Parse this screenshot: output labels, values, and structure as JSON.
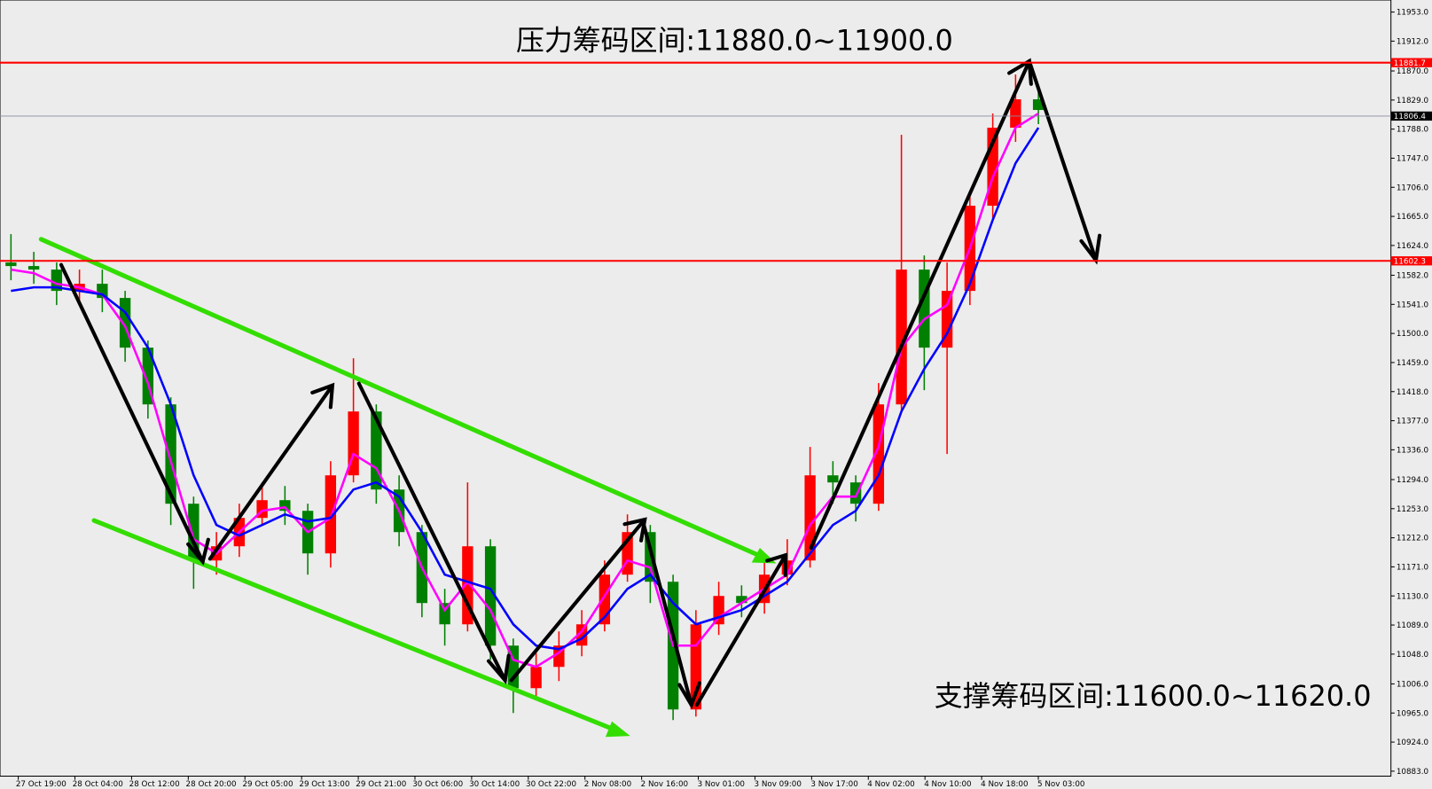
{
  "chart_data": {
    "type": "candlestick",
    "annotations": [
      "压力筹码区间:11880.0~11900.0",
      "支撑筹码区间:11600.0~11620.0"
    ],
    "up_color": "#ff0000",
    "down_color": "#008000",
    "ylim": [
      10876,
      11970
    ],
    "yticks": [
      {
        "value": 11953,
        "label": "11953.0"
      },
      {
        "value": 11912,
        "label": "11912.0"
      },
      {
        "value": 11870,
        "label": "11870.0"
      },
      {
        "value": 11829,
        "label": "11829.0"
      },
      {
        "value": 11788,
        "label": "11788.0"
      },
      {
        "value": 11747,
        "label": "11747.0"
      },
      {
        "value": 11706,
        "label": "11706.0"
      },
      {
        "value": 11665,
        "label": "11665.0"
      },
      {
        "value": 11624,
        "label": "11624.0"
      },
      {
        "value": 11582,
        "label": "11582.0"
      },
      {
        "value": 11541,
        "label": "11541.0"
      },
      {
        "value": 11500,
        "label": "11500.0"
      },
      {
        "value": 11459,
        "label": "11459.0"
      },
      {
        "value": 11418,
        "label": "11418.0"
      },
      {
        "value": 11377,
        "label": "11377.0"
      },
      {
        "value": 11336,
        "label": "11336.0"
      },
      {
        "value": 11294,
        "label": "11294.0"
      },
      {
        "value": 11253,
        "label": "11253.0"
      },
      {
        "value": 11212,
        "label": "11212.0"
      },
      {
        "value": 11171,
        "label": "11171.0"
      },
      {
        "value": 11130,
        "label": "11130.0"
      },
      {
        "value": 11089,
        "label": "11089.0"
      },
      {
        "value": 11048,
        "label": "11048.0"
      },
      {
        "value": 11006,
        "label": "11006.0"
      },
      {
        "value": 10965,
        "label": "10965.0"
      },
      {
        "value": 10924,
        "label": "10924.0"
      },
      {
        "value": 10883,
        "label": "10883.0"
      }
    ],
    "x_labels": [
      "27 Oct 19:00",
      "28 Oct 04:00",
      "28 Oct 12:00",
      "28 Oct 20:00",
      "29 Oct 05:00",
      "29 Oct 13:00",
      "29 Oct 21:00",
      "30 Oct 06:00",
      "30 Oct 14:00",
      "30 Oct 22:00",
      "2 Nov 08:00",
      "2 Nov 16:00",
      "3 Nov 01:00",
      "3 Nov 09:00",
      "3 Nov 17:00",
      "4 Nov 02:00",
      "4 Nov 10:00",
      "4 Nov 18:00",
      "5 Nov 03:00"
    ],
    "open": [
      11600,
      11595,
      11590,
      11560,
      11570,
      11550,
      11480,
      11400,
      11260,
      11180,
      11200,
      11240,
      11265,
      11250,
      11190,
      11300,
      11390,
      11280,
      11220,
      11120,
      11090,
      11200,
      11060,
      11000,
      11030,
      11060,
      11090,
      11160,
      11220,
      11150,
      10970,
      11090,
      11130,
      11120,
      11160,
      11180,
      11300,
      11290,
      11260,
      11400,
      11590,
      11480,
      11560,
      11680,
      11790,
      11830
    ],
    "high": [
      11640,
      11615,
      11600,
      11590,
      11590,
      11560,
      11490,
      11410,
      11270,
      11220,
      11260,
      11290,
      11285,
      11260,
      11320,
      11465,
      11400,
      11300,
      11230,
      11140,
      11290,
      11210,
      11070,
      11050,
      11080,
      11110,
      11180,
      11245,
      11230,
      11160,
      11110,
      11150,
      11145,
      11180,
      11210,
      11340,
      11320,
      11300,
      11430,
      11780,
      11610,
      11600,
      11700,
      11810,
      11865,
      11850
    ],
    "low": [
      11575,
      11570,
      11540,
      11545,
      11530,
      11460,
      11380,
      11230,
      11140,
      11160,
      11185,
      11230,
      11230,
      11160,
      11170,
      11290,
      11260,
      11200,
      11100,
      11060,
      11080,
      11040,
      10965,
      10985,
      11010,
      11045,
      11080,
      11150,
      11120,
      10955,
      10960,
      11075,
      11100,
      11105,
      11145,
      11170,
      11260,
      11235,
      11250,
      11390,
      11420,
      11330,
      11540,
      11660,
      11770,
      11795
    ],
    "close": [
      11595,
      11590,
      11560,
      11570,
      11550,
      11480,
      11400,
      11260,
      11180,
      11200,
      11240,
      11265,
      11250,
      11190,
      11300,
      11390,
      11280,
      11220,
      11120,
      11090,
      11200,
      11060,
      11000,
      11030,
      11060,
      11090,
      11160,
      11220,
      11150,
      10970,
      11090,
      11130,
      11120,
      11160,
      11180,
      11300,
      11290,
      11260,
      11400,
      11590,
      11480,
      11560,
      11680,
      11790,
      11830,
      11815
    ],
    "series": [
      {
        "color": "#ff00ff",
        "values": [
          11590,
          11585,
          11570,
          11565,
          11555,
          11510,
          11430,
          11320,
          11210,
          11190,
          11220,
          11250,
          11255,
          11220,
          11240,
          11330,
          11310,
          11250,
          11170,
          11110,
          11150,
          11110,
          11040,
          11030,
          11050,
          11080,
          11130,
          11180,
          11170,
          11060,
          11060,
          11100,
          11120,
          11140,
          11160,
          11230,
          11270,
          11270,
          11340,
          11480,
          11520,
          11540,
          11620,
          11720,
          11790,
          11810
        ]
      },
      {
        "color": "#0000ff",
        "values": [
          11560,
          11565,
          11565,
          11560,
          11555,
          11530,
          11480,
          11400,
          11300,
          11230,
          11215,
          11230,
          11245,
          11235,
          11240,
          11280,
          11290,
          11270,
          11220,
          11160,
          11150,
          11140,
          11090,
          11060,
          11055,
          11070,
          11100,
          11140,
          11160,
          11120,
          11090,
          11100,
          11110,
          11130,
          11150,
          11190,
          11230,
          11250,
          11300,
          11390,
          11450,
          11500,
          11570,
          11660,
          11740,
          11790
        ]
      }
    ],
    "lines": [
      {
        "value": 11881.7,
        "color": "#ff0000"
      },
      {
        "value": 11602.3,
        "color": "#ff0000"
      }
    ],
    "last_price": 11806.4
  }
}
